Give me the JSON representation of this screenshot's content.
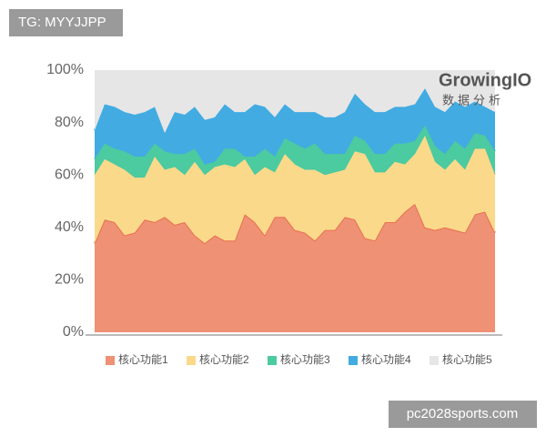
{
  "chart_data": {
    "type": "area",
    "stacked": true,
    "annotations": [
      "TG: MYYJJPP",
      "GrowingIO",
      "数据分析",
      "pc2028sports.com"
    ],
    "categories": [
      null,
      null,
      null,
      null,
      null,
      null,
      null,
      null,
      null,
      null,
      null,
      null,
      null,
      null,
      null,
      null,
      null,
      null,
      null,
      null,
      null,
      null,
      null,
      null,
      null,
      null,
      null,
      null,
      null,
      null,
      null,
      null,
      null,
      null,
      null,
      null,
      null,
      null,
      null,
      null,
      null
    ],
    "series": [
      {
        "name": "核心功能1",
        "color": "#ef9174",
        "values": [
          34,
          43,
          42,
          37,
          38,
          43,
          42,
          44,
          41,
          42,
          37,
          34,
          37,
          35,
          35,
          45,
          42,
          37,
          44,
          44,
          39,
          38,
          35,
          39,
          39,
          44,
          43,
          36,
          35,
          42,
          42,
          46,
          49,
          40,
          39,
          40,
          39,
          38,
          45,
          46,
          38
        ]
      },
      {
        "name": "核心功能2",
        "color": "#fad98b",
        "values": [
          26,
          23,
          22,
          25,
          21,
          16,
          25,
          18,
          22,
          18,
          28,
          26,
          26,
          29,
          28,
          21,
          18,
          26,
          17,
          24,
          25,
          24,
          27,
          21,
          22,
          18,
          26,
          32,
          26,
          19,
          23,
          18,
          19,
          35,
          26,
          22,
          27,
          24,
          25,
          24,
          22
        ]
      },
      {
        "name": "核心功能3",
        "color": "#4ccaa0",
        "values": [
          6,
          6,
          6,
          7,
          8,
          8,
          5,
          7,
          5,
          8,
          5,
          4,
          2,
          6,
          7,
          1,
          7,
          7,
          6,
          6,
          8,
          8,
          10,
          8,
          7,
          6,
          6,
          5,
          7,
          7,
          7,
          8,
          5,
          4,
          6,
          6,
          7,
          8,
          6,
          5,
          9
        ]
      },
      {
        "name": "核心功能4",
        "color": "#42abe2",
        "values": [
          11,
          15,
          16,
          15,
          16,
          17,
          14,
          7,
          16,
          15,
          16,
          17,
          17,
          17,
          14,
          17,
          20,
          16,
          15,
          13,
          12,
          14,
          12,
          14,
          14,
          16,
          16,
          14,
          16,
          16,
          14,
          14,
          14,
          14,
          15,
          16,
          15,
          16,
          12,
          11,
          15
        ]
      },
      {
        "name": "核心功能5",
        "color": "#e6e6e6",
        "values": [
          23,
          13,
          14,
          16,
          17,
          16,
          14,
          24,
          16,
          17,
          14,
          19,
          18,
          13,
          16,
          16,
          13,
          14,
          18,
          13,
          16,
          16,
          16,
          18,
          18,
          16,
          9,
          13,
          16,
          16,
          14,
          14,
          13,
          7,
          14,
          16,
          12,
          14,
          12,
          14,
          16
        ]
      }
    ],
    "ylim": [
      0,
      100
    ],
    "yticks": [
      {
        "value": 0,
        "label": "0%"
      },
      {
        "value": 20,
        "label": "20%"
      },
      {
        "value": 40,
        "label": "40%"
      },
      {
        "value": 60,
        "label": "60%"
      },
      {
        "value": 80,
        "label": "80%"
      },
      {
        "value": 100,
        "label": "100%"
      }
    ],
    "grid": false,
    "legend": "bottom"
  }
}
